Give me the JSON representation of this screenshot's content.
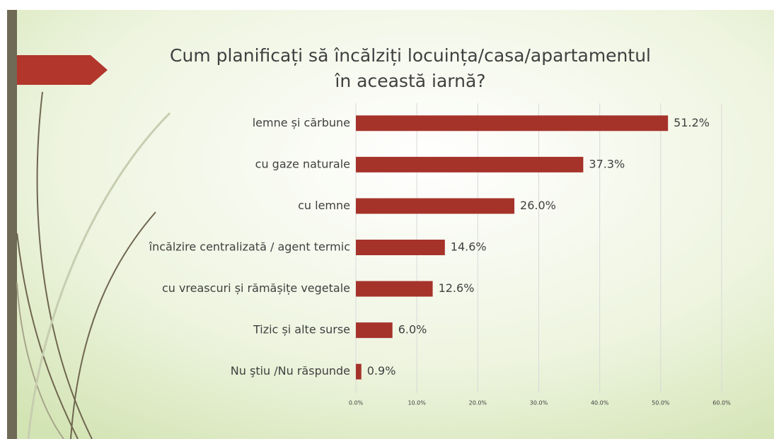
{
  "chart_data": {
    "type": "barh",
    "title": [
      "Cum planificați să încălziți locuința/casa/apartamentul",
      "în această iarnă?"
    ],
    "categories": [
      "lemne și cărbune",
      "cu gaze naturale",
      "cu lemne",
      "încălzire centralizată / agent termic",
      "cu vreascuri și rămășițe vegetale",
      "Tizic și alte surse",
      "Nu ştiu /Nu răspunde"
    ],
    "values": [
      51.2,
      37.3,
      26.0,
      14.6,
      12.6,
      6.0,
      0.9
    ],
    "value_labels": [
      "51.2%",
      "37.3%",
      "26.0%",
      "14.6%",
      "12.6%",
      "6.0%",
      "0.9%"
    ],
    "color": "#a5332a",
    "xlim": [
      0,
      60
    ],
    "xticks": [
      {
        "value": 0,
        "label": "0.0%"
      },
      {
        "value": 10,
        "label": "10.0%"
      },
      {
        "value": 20,
        "label": "20.0%"
      },
      {
        "value": 30,
        "label": "30.0%"
      },
      {
        "value": 40,
        "label": "40.0%"
      },
      {
        "value": 50,
        "label": "50.0%"
      },
      {
        "value": 60,
        "label": "60.0%"
      }
    ],
    "grid": true
  }
}
